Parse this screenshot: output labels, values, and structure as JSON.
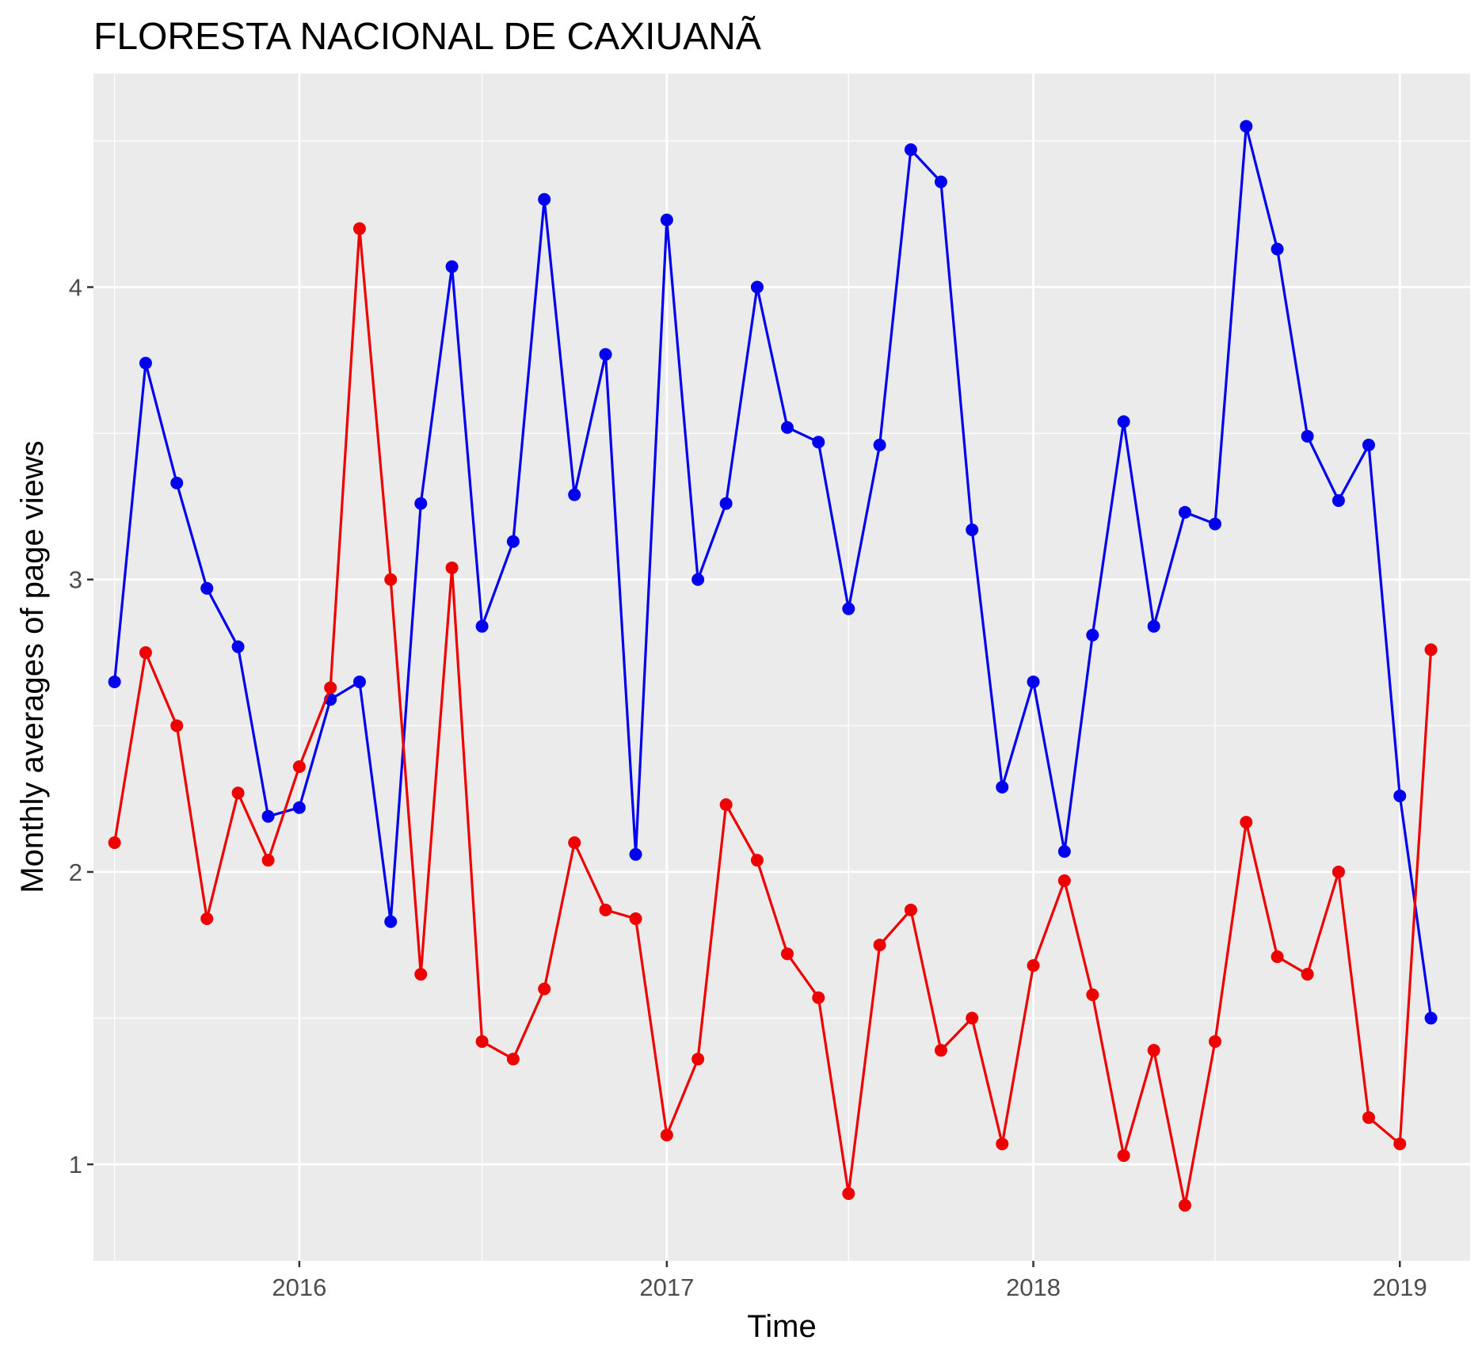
{
  "chart_data": {
    "type": "line",
    "title": "FLORESTA NACIONAL DE CAXIUANÃ",
    "xlabel": "Time",
    "ylabel": "Monthly averages of page views",
    "xlim": [
      "2015-06-10",
      "2019-03-12"
    ],
    "ylim": [
      0.67,
      4.73
    ],
    "x_ticks": [
      "2016",
      "2017",
      "2018",
      "2019"
    ],
    "y_ticks": [
      "1",
      "2",
      "3",
      "4"
    ],
    "grid": true,
    "legend": "none",
    "x": [
      "2015-07-01",
      "2015-08-01",
      "2015-09-01",
      "2015-10-01",
      "2015-11-01",
      "2015-12-01",
      "2016-01-01",
      "2016-02-01",
      "2016-03-01",
      "2016-04-01",
      "2016-05-01",
      "2016-06-01",
      "2016-07-01",
      "2016-08-01",
      "2016-09-01",
      "2016-10-01",
      "2016-11-01",
      "2016-12-01",
      "2017-01-01",
      "2017-02-01",
      "2017-03-01",
      "2017-04-01",
      "2017-05-01",
      "2017-06-01",
      "2017-07-01",
      "2017-08-01",
      "2017-09-01",
      "2017-10-01",
      "2017-11-01",
      "2017-12-01",
      "2018-01-01",
      "2018-02-01",
      "2018-03-01",
      "2018-04-01",
      "2018-05-01",
      "2018-06-01",
      "2018-07-01",
      "2018-08-01",
      "2018-09-01",
      "2018-10-01",
      "2018-11-01",
      "2018-12-01",
      "2019-01-01",
      "2019-02-01"
    ],
    "series": [
      {
        "color": "#0000ee",
        "values": [
          2.65,
          3.74,
          3.33,
          2.97,
          2.77,
          2.19,
          2.22,
          2.59,
          2.65,
          1.83,
          3.26,
          4.07,
          2.84,
          3.13,
          4.3,
          3.29,
          3.77,
          2.06,
          4.23,
          3.0,
          3.26,
          4.0,
          3.52,
          3.47,
          2.9,
          3.46,
          4.47,
          4.36,
          3.17,
          2.29,
          2.65,
          2.07,
          2.81,
          3.54,
          2.84,
          3.23,
          3.19,
          4.55,
          4.13,
          3.49,
          3.27,
          3.46,
          2.26,
          1.5
        ]
      },
      {
        "color": "#ee0000",
        "values": [
          2.1,
          2.75,
          2.5,
          1.84,
          2.27,
          2.04,
          2.36,
          2.63,
          4.2,
          3.0,
          1.65,
          3.04,
          1.42,
          1.36,
          1.6,
          2.1,
          1.87,
          1.84,
          1.1,
          1.36,
          2.23,
          2.04,
          1.72,
          1.57,
          0.9,
          1.75,
          1.87,
          1.39,
          1.5,
          1.07,
          1.68,
          1.97,
          1.58,
          1.03,
          1.39,
          0.86,
          1.42,
          2.17,
          1.71,
          1.65,
          2.0,
          1.16,
          1.07,
          2.76
        ]
      }
    ]
  }
}
